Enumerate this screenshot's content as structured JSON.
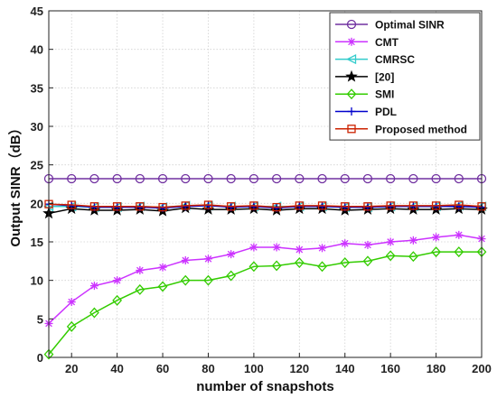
{
  "chart_data": {
    "type": "line",
    "xlabel": "number of snapshots",
    "ylabel": "Output SINR（dB）",
    "xlim": [
      10,
      200
    ],
    "ylim": [
      0,
      45
    ],
    "x_ticks": [
      "20",
      "40",
      "60",
      "80",
      "100",
      "120",
      "140",
      "160",
      "180",
      "200"
    ],
    "y_ticks": [
      "0",
      "5",
      "10",
      "15",
      "20",
      "25",
      "30",
      "35",
      "40",
      "45"
    ],
    "grid": true,
    "legend_position": "top-right",
    "x": [
      10,
      20,
      30,
      40,
      50,
      60,
      70,
      80,
      90,
      100,
      110,
      120,
      130,
      140,
      150,
      160,
      170,
      180,
      190,
      200
    ],
    "series": [
      {
        "name": "Optimal SINR",
        "color": "#7030a0",
        "marker": "circle",
        "values": [
          23.2,
          23.2,
          23.2,
          23.2,
          23.2,
          23.2,
          23.2,
          23.2,
          23.2,
          23.2,
          23.2,
          23.2,
          23.2,
          23.2,
          23.2,
          23.2,
          23.2,
          23.2,
          23.2,
          23.2
        ]
      },
      {
        "name": "CMT",
        "color": "#cc33ff",
        "marker": "asterisk",
        "values": [
          4.4,
          7.2,
          9.3,
          10.0,
          11.3,
          11.7,
          12.6,
          12.8,
          13.4,
          14.3,
          14.3,
          14.0,
          14.2,
          14.8,
          14.6,
          15.0,
          15.2,
          15.6,
          15.9,
          15.4
        ]
      },
      {
        "name": "CMRSC",
        "color": "#33cccc",
        "marker": "triangle-left",
        "values": [
          19.6,
          19.6,
          19.5,
          19.5,
          19.6,
          19.5,
          19.7,
          19.7,
          19.6,
          19.6,
          19.6,
          19.6,
          19.6,
          19.5,
          19.5,
          19.6,
          19.6,
          19.6,
          19.7,
          19.6
        ]
      },
      {
        "name": "[20]",
        "color": "#000000",
        "marker": "star",
        "values": [
          18.7,
          19.3,
          19.1,
          19.1,
          19.2,
          19.0,
          19.4,
          19.2,
          19.2,
          19.3,
          19.1,
          19.3,
          19.3,
          19.1,
          19.2,
          19.3,
          19.2,
          19.2,
          19.3,
          19.2
        ]
      },
      {
        "name": "SMI",
        "color": "#33cc00",
        "marker": "diamond",
        "values": [
          0.4,
          4.0,
          5.8,
          7.4,
          8.8,
          9.2,
          10.0,
          10.0,
          10.6,
          11.8,
          11.9,
          12.3,
          11.8,
          12.3,
          12.5,
          13.2,
          13.1,
          13.7,
          13.7,
          13.7
        ]
      },
      {
        "name": "PDL",
        "color": "#0000cc",
        "marker": "plus",
        "values": [
          19.9,
          19.7,
          19.5,
          19.5,
          19.5,
          19.4,
          19.6,
          19.7,
          19.5,
          19.6,
          19.4,
          19.6,
          19.6,
          19.5,
          19.5,
          19.6,
          19.6,
          19.6,
          19.6,
          19.5
        ]
      },
      {
        "name": "Proposed method",
        "color": "#cc2200",
        "marker": "square",
        "values": [
          19.9,
          19.8,
          19.6,
          19.6,
          19.6,
          19.5,
          19.7,
          19.8,
          19.6,
          19.7,
          19.5,
          19.7,
          19.7,
          19.6,
          19.6,
          19.7,
          19.7,
          19.7,
          19.8,
          19.6
        ]
      }
    ]
  }
}
